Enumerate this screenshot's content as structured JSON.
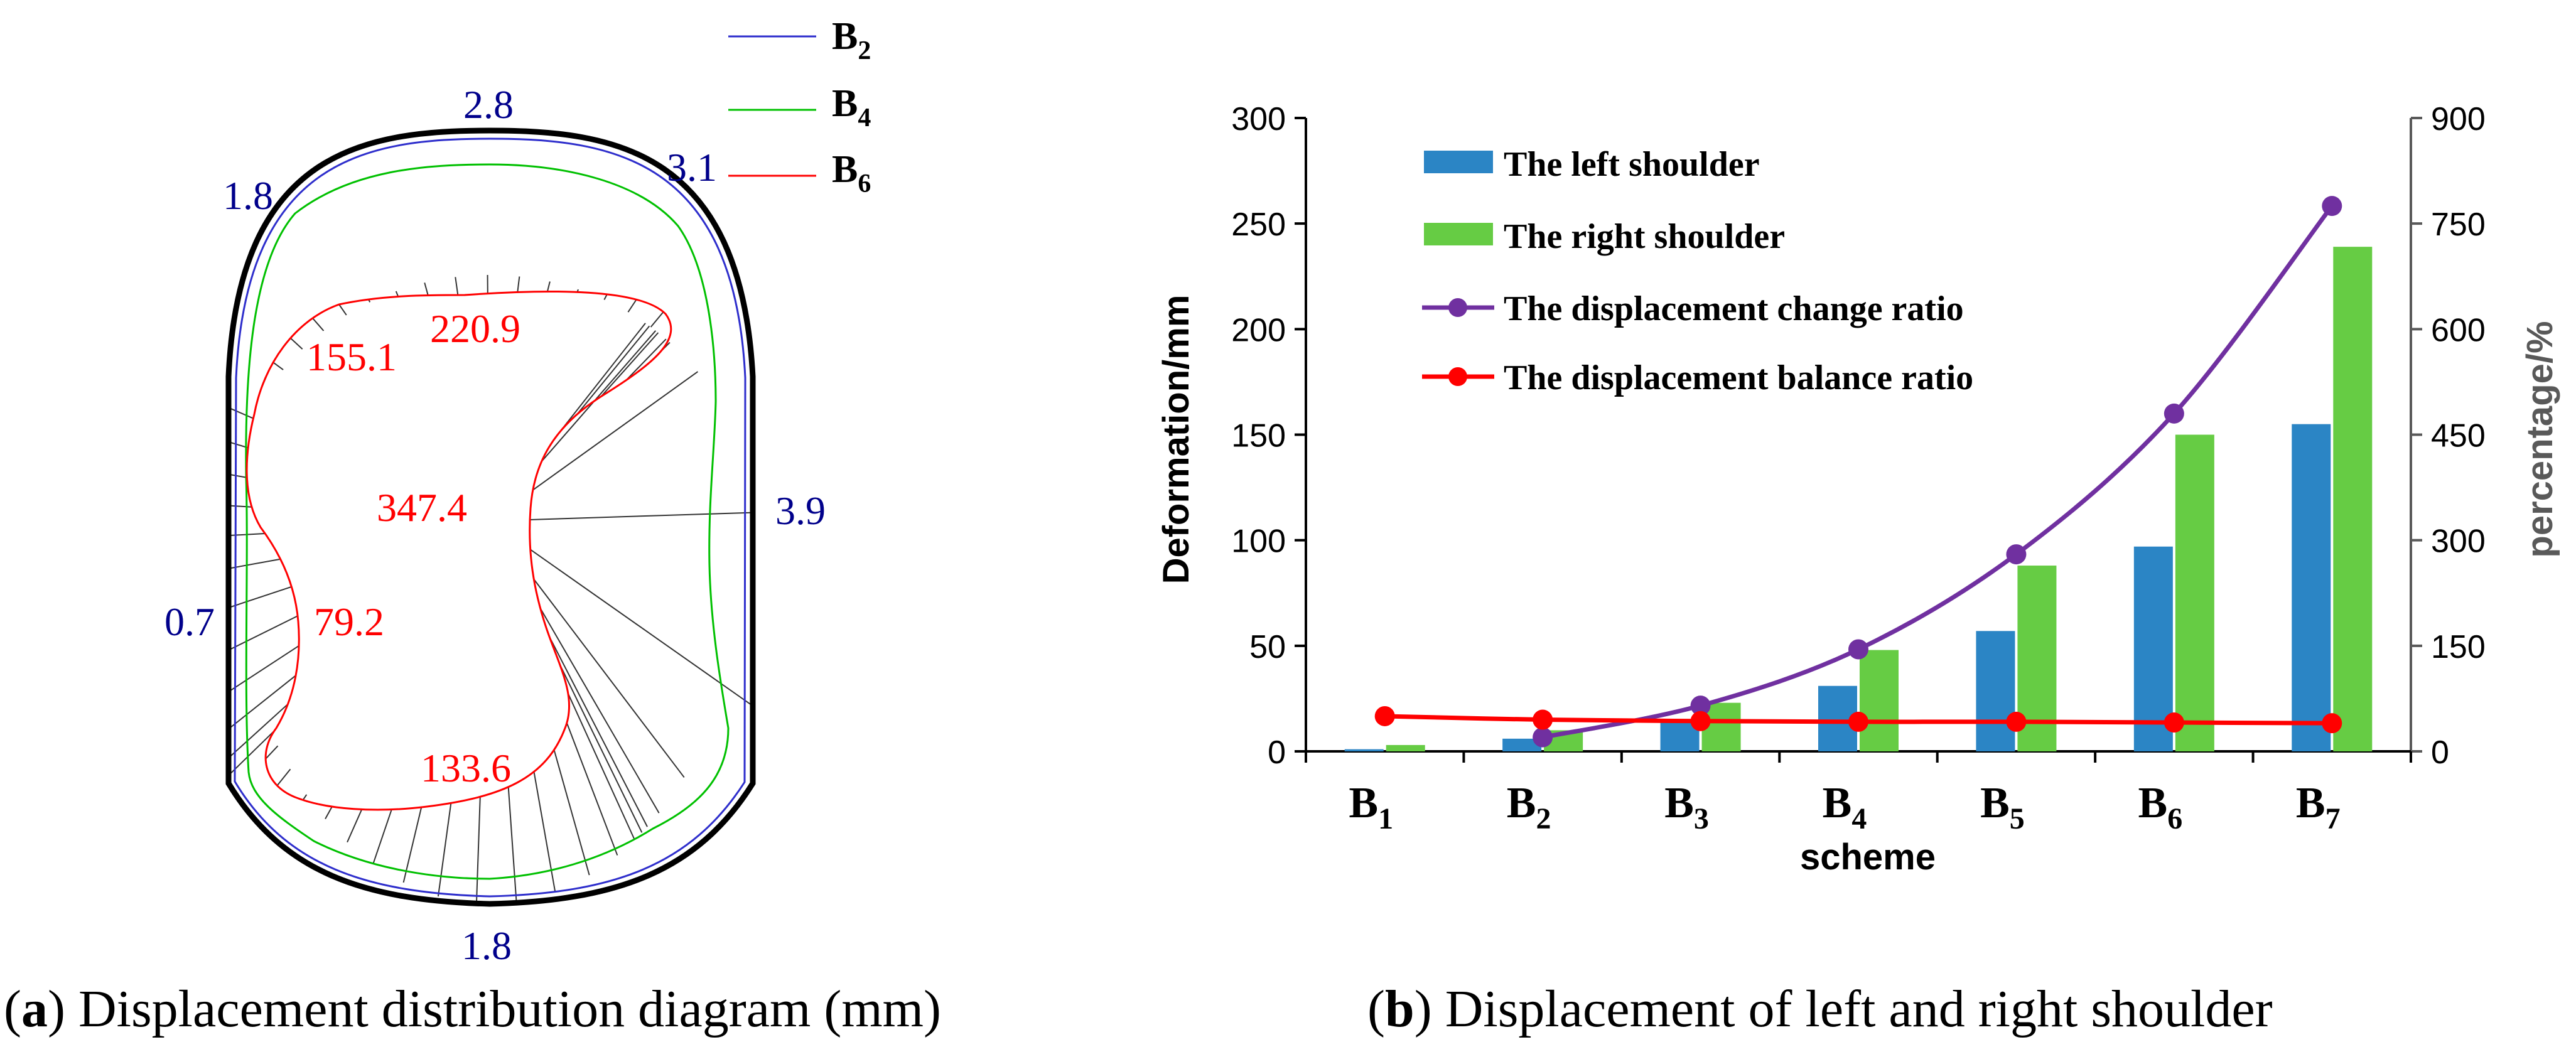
{
  "colors": {
    "blue": "#00008b",
    "red": "#ff0000",
    "green": "#00c000",
    "outline": "#000000",
    "bar_left": "#2b85c5",
    "bar_right": "#66cc44",
    "change_ratio": "#7030a0",
    "balance_ratio": "#ff0000",
    "axis_gray": "#595959"
  },
  "panel_a": {
    "legend": [
      {
        "base": "B",
        "sub": "2",
        "color": "#2e2ecc"
      },
      {
        "base": "B",
        "sub": "4",
        "color": "#00c000"
      },
      {
        "base": "B",
        "sub": "6",
        "color": "#ff0000"
      }
    ],
    "labels_b2": {
      "top": "2.8",
      "upper_left": "1.8",
      "upper_right": "3.1",
      "right": "3.9",
      "left": "0.7",
      "bottom": "1.8"
    },
    "labels_b6": {
      "upper_left": "155.1",
      "upper_mid": "220.9",
      "middle": "347.4",
      "left": "79.2",
      "lower": "133.6"
    },
    "caption_bold": "a",
    "caption_text": " Displacement distribution diagram (mm)"
  },
  "panel_b": {
    "caption_bold": "b",
    "caption_text": " Displacement of left and right shoulder",
    "legend_labels": [
      "The left shoulder",
      "The right shoulder",
      "The displacement change ratio",
      "The displacement balance ratio"
    ]
  },
  "chart_data": {
    "type": "bar",
    "categories": [
      "B1",
      "B2",
      "B3",
      "B4",
      "B5",
      "B6",
      "B7"
    ],
    "category_labels": [
      {
        "base": "B",
        "sub": "1"
      },
      {
        "base": "B",
        "sub": "2"
      },
      {
        "base": "B",
        "sub": "3"
      },
      {
        "base": "B",
        "sub": "4"
      },
      {
        "base": "B",
        "sub": "5"
      },
      {
        "base": "B",
        "sub": "6"
      },
      {
        "base": "B",
        "sub": "7"
      }
    ],
    "series": [
      {
        "name": "The left shoulder",
        "type": "bar",
        "axis": "left",
        "values": [
          1,
          6,
          15,
          31,
          57,
          97,
          155
        ]
      },
      {
        "name": "The right shoulder",
        "type": "bar",
        "axis": "left",
        "values": [
          3,
          10,
          23,
          48,
          88,
          150,
          239
        ]
      },
      {
        "name": "The displacement change ratio",
        "type": "line",
        "axis": "right",
        "values": [
          null,
          20,
          65,
          145,
          280,
          480,
          775
        ]
      },
      {
        "name": "The displacement balance ratio",
        "type": "line",
        "axis": "right",
        "values": [
          50,
          45,
          43,
          42,
          42,
          41,
          40
        ]
      }
    ],
    "xlabel": "scheme",
    "ylabel": "Deformation/mm",
    "y2label": "percentage/%",
    "ylim": [
      0,
      300
    ],
    "y2lim": [
      0,
      900
    ],
    "yticks": [
      0,
      50,
      100,
      150,
      200,
      250,
      300
    ],
    "y2ticks": [
      0,
      150,
      300,
      450,
      600,
      750,
      900
    ],
    "legend_position": "top-left"
  }
}
